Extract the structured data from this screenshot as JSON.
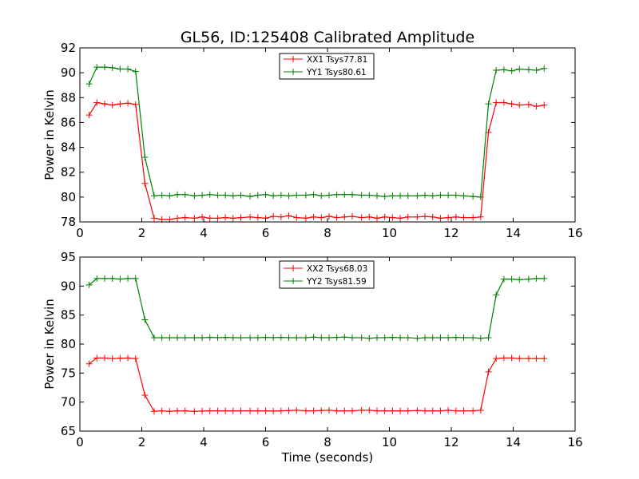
{
  "figure_title": "GL56, ID:125408 Calibrated Amplitude",
  "chart_data": [
    {
      "type": "line",
      "title": "GL56, ID:125408 Calibrated Amplitude",
      "xlabel": "",
      "ylabel": "Power in Kelvin",
      "xlim": [
        0,
        16
      ],
      "ylim": [
        78,
        92
      ],
      "xticks": [
        0,
        2,
        4,
        6,
        8,
        10,
        12,
        14,
        16
      ],
      "yticks": [
        78,
        80,
        82,
        84,
        86,
        88,
        90,
        92
      ],
      "grid": false,
      "legend_position": "top-center",
      "x": [
        0.3,
        0.55,
        0.8,
        1.05,
        1.3,
        1.55,
        1.8,
        2.1,
        2.4,
        2.65,
        2.9,
        3.15,
        3.4,
        3.7,
        3.95,
        4.2,
        4.45,
        4.7,
        4.95,
        5.2,
        5.5,
        5.75,
        6.0,
        6.25,
        6.5,
        6.75,
        7.0,
        7.3,
        7.55,
        7.8,
        8.05,
        8.3,
        8.55,
        8.8,
        9.1,
        9.35,
        9.6,
        9.85,
        10.1,
        10.35,
        10.6,
        10.9,
        11.15,
        11.4,
        11.65,
        11.9,
        12.15,
        12.4,
        12.7,
        12.95,
        13.2,
        13.45,
        13.7,
        13.95,
        14.2,
        14.5,
        14.75,
        15.0
      ],
      "series": [
        {
          "name": "XX1 Tsys77.81",
          "color": "#ff0000",
          "values": [
            86.6,
            87.6,
            87.5,
            87.4,
            87.5,
            87.55,
            87.45,
            81.1,
            78.3,
            78.2,
            78.2,
            78.3,
            78.35,
            78.3,
            78.4,
            78.3,
            78.3,
            78.35,
            78.3,
            78.35,
            78.4,
            78.35,
            78.3,
            78.45,
            78.4,
            78.5,
            78.35,
            78.3,
            78.4,
            78.35,
            78.45,
            78.35,
            78.4,
            78.45,
            78.35,
            78.4,
            78.3,
            78.4,
            78.35,
            78.3,
            78.4,
            78.4,
            78.45,
            78.4,
            78.3,
            78.35,
            78.4,
            78.35,
            78.35,
            78.4,
            85.2,
            87.6,
            87.6,
            87.5,
            87.4,
            87.45,
            87.3,
            87.4
          ]
        },
        {
          "name": "YY1 Tsys80.61",
          "color": "#008000",
          "values": [
            89.1,
            90.45,
            90.45,
            90.4,
            90.3,
            90.3,
            90.1,
            83.2,
            80.1,
            80.15,
            80.1,
            80.2,
            80.2,
            80.1,
            80.15,
            80.2,
            80.15,
            80.15,
            80.1,
            80.15,
            80.05,
            80.15,
            80.2,
            80.1,
            80.15,
            80.1,
            80.15,
            80.15,
            80.2,
            80.1,
            80.15,
            80.2,
            80.2,
            80.2,
            80.15,
            80.15,
            80.1,
            80.05,
            80.1,
            80.1,
            80.1,
            80.1,
            80.15,
            80.1,
            80.15,
            80.15,
            80.15,
            80.1,
            80.05,
            80.0,
            87.5,
            90.2,
            90.25,
            90.15,
            90.3,
            90.25,
            90.2,
            90.35
          ]
        }
      ]
    },
    {
      "type": "line",
      "title": "",
      "xlabel": "Time (seconds)",
      "ylabel": "Power in Kelvin",
      "xlim": [
        0,
        16
      ],
      "ylim": [
        65,
        95
      ],
      "xticks": [
        0,
        2,
        4,
        6,
        8,
        10,
        12,
        14,
        16
      ],
      "yticks": [
        65,
        70,
        75,
        80,
        85,
        90,
        95
      ],
      "grid": false,
      "legend_position": "top-center",
      "x": [
        0.3,
        0.55,
        0.8,
        1.05,
        1.3,
        1.55,
        1.8,
        2.1,
        2.4,
        2.65,
        2.9,
        3.15,
        3.4,
        3.7,
        3.95,
        4.2,
        4.45,
        4.7,
        4.95,
        5.2,
        5.5,
        5.75,
        6.0,
        6.25,
        6.5,
        6.75,
        7.0,
        7.3,
        7.55,
        7.8,
        8.05,
        8.3,
        8.55,
        8.8,
        9.1,
        9.35,
        9.6,
        9.85,
        10.1,
        10.35,
        10.6,
        10.9,
        11.15,
        11.4,
        11.65,
        11.9,
        12.15,
        12.4,
        12.7,
        12.95,
        13.2,
        13.45,
        13.7,
        13.95,
        14.2,
        14.5,
        14.75,
        15.0
      ],
      "series": [
        {
          "name": "XX2 Tsys68.03",
          "color": "#ff0000",
          "values": [
            76.6,
            77.6,
            77.6,
            77.5,
            77.55,
            77.6,
            77.5,
            71.2,
            68.4,
            68.5,
            68.4,
            68.5,
            68.5,
            68.4,
            68.45,
            68.5,
            68.5,
            68.5,
            68.5,
            68.5,
            68.5,
            68.5,
            68.5,
            68.45,
            68.5,
            68.55,
            68.6,
            68.5,
            68.5,
            68.55,
            68.6,
            68.5,
            68.5,
            68.5,
            68.6,
            68.6,
            68.5,
            68.5,
            68.5,
            68.5,
            68.5,
            68.55,
            68.5,
            68.5,
            68.5,
            68.6,
            68.5,
            68.5,
            68.5,
            68.6,
            75.2,
            77.5,
            77.6,
            77.6,
            77.5,
            77.5,
            77.5,
            77.5
          ]
        },
        {
          "name": "YY2 Tsys81.59",
          "color": "#008000",
          "values": [
            90.2,
            91.3,
            91.3,
            91.3,
            91.2,
            91.3,
            91.3,
            84.2,
            81.1,
            81.1,
            81.1,
            81.1,
            81.1,
            81.1,
            81.1,
            81.15,
            81.1,
            81.15,
            81.1,
            81.1,
            81.1,
            81.1,
            81.15,
            81.1,
            81.15,
            81.1,
            81.1,
            81.1,
            81.2,
            81.1,
            81.1,
            81.15,
            81.2,
            81.1,
            81.1,
            81.0,
            81.1,
            81.1,
            81.15,
            81.1,
            81.1,
            81.0,
            81.1,
            81.1,
            81.1,
            81.1,
            81.15,
            81.1,
            81.1,
            81.0,
            81.1,
            88.5,
            91.2,
            91.2,
            91.1,
            91.2,
            91.3,
            91.3
          ]
        }
      ]
    }
  ]
}
